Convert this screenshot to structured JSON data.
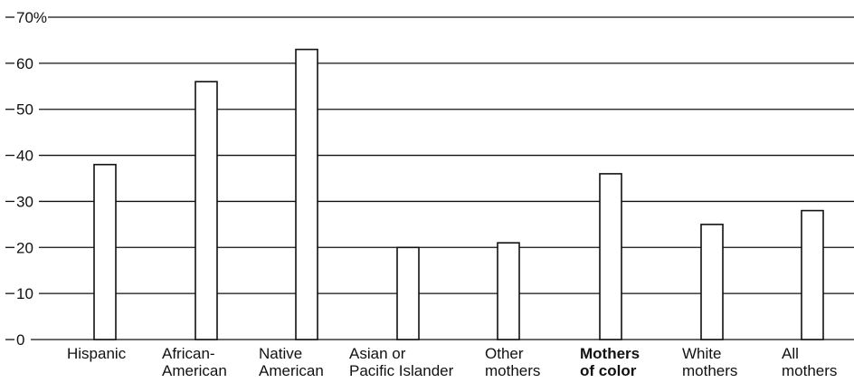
{
  "chart_data": {
    "type": "bar",
    "title": "",
    "xlabel": "",
    "ylabel": "",
    "ylim": [
      0,
      70
    ],
    "y_ticks": [
      0,
      10,
      20,
      30,
      40,
      50,
      60,
      70
    ],
    "y_tick_labels": [
      "0",
      "10",
      "20",
      "30",
      "40",
      "50",
      "60",
      "70%"
    ],
    "grid": true,
    "categories": [
      {
        "lines": [
          "Hispanic"
        ],
        "bold": false
      },
      {
        "lines": [
          "African-",
          "American"
        ],
        "bold": false
      },
      {
        "lines": [
          "Native",
          "American"
        ],
        "bold": false
      },
      {
        "lines": [
          "Asian or",
          "Pacific Islander"
        ],
        "bold": false
      },
      {
        "lines": [
          "Other",
          "mothers"
        ],
        "bold": false
      },
      {
        "lines": [
          "Mothers",
          "of color"
        ],
        "bold": true
      },
      {
        "lines": [
          "White",
          "mothers"
        ],
        "bold": false
      },
      {
        "lines": [
          "All",
          "mothers"
        ],
        "bold": false
      }
    ],
    "values": [
      38,
      56,
      63,
      20,
      21,
      36,
      25,
      28
    ],
    "bar_color": "#ffffff",
    "line_color": "#111111"
  }
}
